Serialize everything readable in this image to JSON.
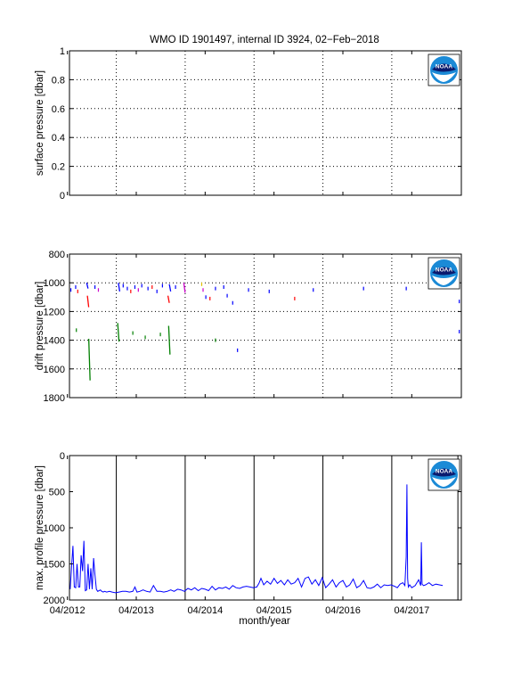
{
  "figure": {
    "title": "WMO ID 1901497, internal ID 3924, 02−Feb−2018",
    "xlabel": "month/year"
  },
  "colors": {
    "series": "#0000ff",
    "drift_blue": "#0000ff",
    "drift_green": "#008000",
    "drift_red": "#ff0000",
    "drift_magenta": "#cc00cc",
    "drift_yellow": "#e0c000"
  },
  "logo": {
    "name": "noaa-logo-icon",
    "text": "NOAA"
  },
  "chart_data": [
    {
      "id": "surface",
      "type": "line",
      "ylabel": "surface pressure [dbar]",
      "ylim": [
        0,
        1
      ],
      "yticks": [
        0,
        0.2,
        0.4,
        0.6,
        0.8,
        1
      ],
      "ytick_labels": [
        "0",
        "0.2",
        "0.4",
        "0.6",
        "0.8",
        "1"
      ],
      "xlim": [
        2012.28,
        2017.97
      ],
      "grid": "dotted",
      "series": []
    },
    {
      "id": "drift",
      "type": "scatter",
      "ylabel": "drift pressure [dbar]",
      "ylim": [
        800,
        1800
      ],
      "y_reversed": true,
      "yticks": [
        800,
        1000,
        1200,
        1400,
        1600,
        1800
      ],
      "ytick_labels": [
        "800",
        "1000",
        "1200",
        "1400",
        "1600",
        "1800"
      ],
      "xlim": [
        2012.28,
        2017.97
      ],
      "grid": "dotted",
      "segments": [
        {
          "color": "blue",
          "x": 2012.53,
          "y0": 1000,
          "y1": 1040
        },
        {
          "color": "red",
          "x": 2012.54,
          "y0": 1090,
          "y1": 1170
        },
        {
          "color": "green",
          "x": 2012.56,
          "y0": 1390,
          "y1": 1680
        },
        {
          "color": "green",
          "x": 2012.98,
          "y0": 1280,
          "y1": 1410
        },
        {
          "color": "blue",
          "x": 2012.99,
          "y0": 1000,
          "y1": 1060
        },
        {
          "color": "green",
          "x": 2013.72,
          "y0": 1300,
          "y1": 1500
        },
        {
          "color": "red",
          "x": 2013.71,
          "y0": 1090,
          "y1": 1140
        },
        {
          "color": "blue",
          "x": 2013.73,
          "y0": 1010,
          "y1": 1060
        },
        {
          "color": "magenta",
          "x": 2013.94,
          "y0": 1000,
          "y1": 1070
        }
      ],
      "points": [
        {
          "color": "blue",
          "x": 2012.3,
          "y": 1050
        },
        {
          "color": "blue",
          "x": 2012.37,
          "y": 1030
        },
        {
          "color": "red",
          "x": 2012.4,
          "y": 1060
        },
        {
          "color": "green",
          "x": 2012.38,
          "y": 1330
        },
        {
          "color": "blue",
          "x": 2012.65,
          "y": 1030
        },
        {
          "color": "magenta",
          "x": 2012.7,
          "y": 1050
        },
        {
          "color": "blue",
          "x": 2013.06,
          "y": 1020
        },
        {
          "color": "blue",
          "x": 2013.12,
          "y": 1040
        },
        {
          "color": "red",
          "x": 2013.17,
          "y": 1060
        },
        {
          "color": "green",
          "x": 2013.2,
          "y": 1350
        },
        {
          "color": "blue",
          "x": 2013.23,
          "y": 1030
        },
        {
          "color": "magenta",
          "x": 2013.28,
          "y": 1050
        },
        {
          "color": "blue",
          "x": 2013.33,
          "y": 1020
        },
        {
          "color": "green",
          "x": 2013.38,
          "y": 1380
        },
        {
          "color": "blue",
          "x": 2013.42,
          "y": 1040
        },
        {
          "color": "red",
          "x": 2013.48,
          "y": 1030
        },
        {
          "color": "blue",
          "x": 2013.55,
          "y": 1060
        },
        {
          "color": "green",
          "x": 2013.6,
          "y": 1360
        },
        {
          "color": "blue",
          "x": 2013.63,
          "y": 1020
        },
        {
          "color": "blue",
          "x": 2013.82,
          "y": 1030
        },
        {
          "color": "yellow",
          "x": 2014.2,
          "y": 1010
        },
        {
          "color": "magenta",
          "x": 2014.22,
          "y": 1050
        },
        {
          "color": "blue",
          "x": 2014.26,
          "y": 1100
        },
        {
          "color": "red",
          "x": 2014.32,
          "y": 1110
        },
        {
          "color": "blue",
          "x": 2014.4,
          "y": 1040
        },
        {
          "color": "green",
          "x": 2014.4,
          "y": 1400
        },
        {
          "color": "blue",
          "x": 2014.52,
          "y": 1030
        },
        {
          "color": "blue",
          "x": 2014.57,
          "y": 1090
        },
        {
          "color": "blue",
          "x": 2014.65,
          "y": 1140
        },
        {
          "color": "blue",
          "x": 2014.72,
          "y": 1470
        },
        {
          "color": "blue",
          "x": 2014.88,
          "y": 1050
        },
        {
          "color": "blue",
          "x": 2015.18,
          "y": 1060
        },
        {
          "color": "red",
          "x": 2015.55,
          "y": 1110
        },
        {
          "color": "blue",
          "x": 2015.82,
          "y": 1050
        },
        {
          "color": "blue",
          "x": 2016.55,
          "y": 1040
        },
        {
          "color": "blue",
          "x": 2017.17,
          "y": 1040
        },
        {
          "color": "blue",
          "x": 2017.94,
          "y": 1340
        },
        {
          "color": "blue",
          "x": 2017.94,
          "y": 1130
        }
      ]
    },
    {
      "id": "max_profile",
      "type": "line",
      "ylabel": "max. profile pressure [dbar]",
      "ylim": [
        0,
        2000
      ],
      "y_reversed": true,
      "yticks": [
        0,
        500,
        1000,
        1500,
        2000
      ],
      "ytick_labels": [
        "0",
        "500",
        "1000",
        "1500",
        "2000"
      ],
      "xlim": [
        2012.28,
        2017.97
      ],
      "xticks": [
        2012.25,
        2013.25,
        2014.25,
        2015.25,
        2016.25,
        2017.25
      ],
      "xtick_labels": [
        "04/2012",
        "04/2013",
        "04/2014",
        "04/2015",
        "04/2016",
        "04/2017"
      ],
      "vlines": [
        2012.96,
        2013.96,
        2014.96,
        2015.96,
        2016.96,
        2017.92
      ],
      "series": [
        {
          "x": [
            2012.29,
            2012.31,
            2012.33,
            2012.35,
            2012.37,
            2012.39,
            2012.41,
            2012.43,
            2012.45,
            2012.47,
            2012.49,
            2012.51,
            2012.53,
            2012.55,
            2012.57,
            2012.59,
            2012.61,
            2012.63,
            2012.65,
            2012.67,
            2012.69,
            2012.71,
            2012.73,
            2012.75,
            2012.77,
            2012.79,
            2012.82,
            2012.86,
            2012.9,
            2012.95,
            2013.0,
            2013.05,
            2013.1,
            2013.15,
            2013.2,
            2013.23,
            2013.26,
            2013.3,
            2013.35,
            2013.4,
            2013.45,
            2013.5,
            2013.55,
            2013.6,
            2013.65,
            2013.7,
            2013.75,
            2013.8,
            2013.85,
            2013.9,
            2013.95,
            2014.0,
            2014.05,
            2014.1,
            2014.15,
            2014.2,
            2014.25,
            2014.3,
            2014.35,
            2014.4,
            2014.45,
            2014.5,
            2014.55,
            2014.6,
            2014.65,
            2014.7,
            2014.75,
            2014.8,
            2014.85,
            2014.9,
            2014.95,
            2015.0,
            2015.03,
            2015.06,
            2015.1,
            2015.15,
            2015.2,
            2015.25,
            2015.3,
            2015.35,
            2015.4,
            2015.45,
            2015.5,
            2015.55,
            2015.6,
            2015.65,
            2015.7,
            2015.75,
            2015.8,
            2015.85,
            2015.9,
            2015.95,
            2016.0,
            2016.05,
            2016.1,
            2016.15,
            2016.2,
            2016.25,
            2016.3,
            2016.35,
            2016.4,
            2016.45,
            2016.5,
            2016.55,
            2016.6,
            2016.65,
            2016.7,
            2016.75,
            2016.8,
            2016.85,
            2016.9,
            2016.95,
            2017.0,
            2017.04,
            2017.08,
            2017.12,
            2017.15,
            2017.17,
            2017.18,
            2017.19,
            2017.2,
            2017.22,
            2017.25,
            2017.3,
            2017.35,
            2017.38,
            2017.39,
            2017.4,
            2017.42,
            2017.45,
            2017.5,
            2017.55,
            2017.6,
            2017.65,
            2017.7
          ],
          "y": [
            1850,
            1550,
            1250,
            1820,
            1830,
            1500,
            1820,
            1820,
            1380,
            1600,
            1180,
            1870,
            1860,
            1500,
            1850,
            1560,
            1850,
            1420,
            1650,
            1850,
            1880,
            1870,
            1860,
            1880,
            1890,
            1880,
            1890,
            1880,
            1890,
            1900,
            1890,
            1880,
            1880,
            1890,
            1880,
            1820,
            1890,
            1880,
            1860,
            1880,
            1890,
            1800,
            1880,
            1880,
            1890,
            1880,
            1860,
            1880,
            1850,
            1860,
            1880,
            1840,
            1860,
            1830,
            1870,
            1840,
            1850,
            1870,
            1810,
            1860,
            1830,
            1840,
            1820,
            1850,
            1800,
            1830,
            1840,
            1820,
            1810,
            1820,
            1830,
            1820,
            1770,
            1700,
            1790,
            1740,
            1780,
            1700,
            1770,
            1730,
            1790,
            1720,
            1780,
            1760,
            1700,
            1820,
            1700,
            1680,
            1780,
            1720,
            1800,
            1690,
            1830,
            1780,
            1720,
            1820,
            1760,
            1730,
            1820,
            1790,
            1710,
            1830,
            1800,
            1730,
            1830,
            1840,
            1820,
            1780,
            1830,
            1790,
            1800,
            1790,
            1810,
            1830,
            1780,
            1760,
            1800,
            1400,
            400,
            1700,
            1820,
            1790,
            1830,
            1800,
            1720,
            1800,
            1200,
            1780,
            1800,
            1790,
            1760,
            1800,
            1780,
            1790,
            1800
          ]
        }
      ]
    }
  ]
}
